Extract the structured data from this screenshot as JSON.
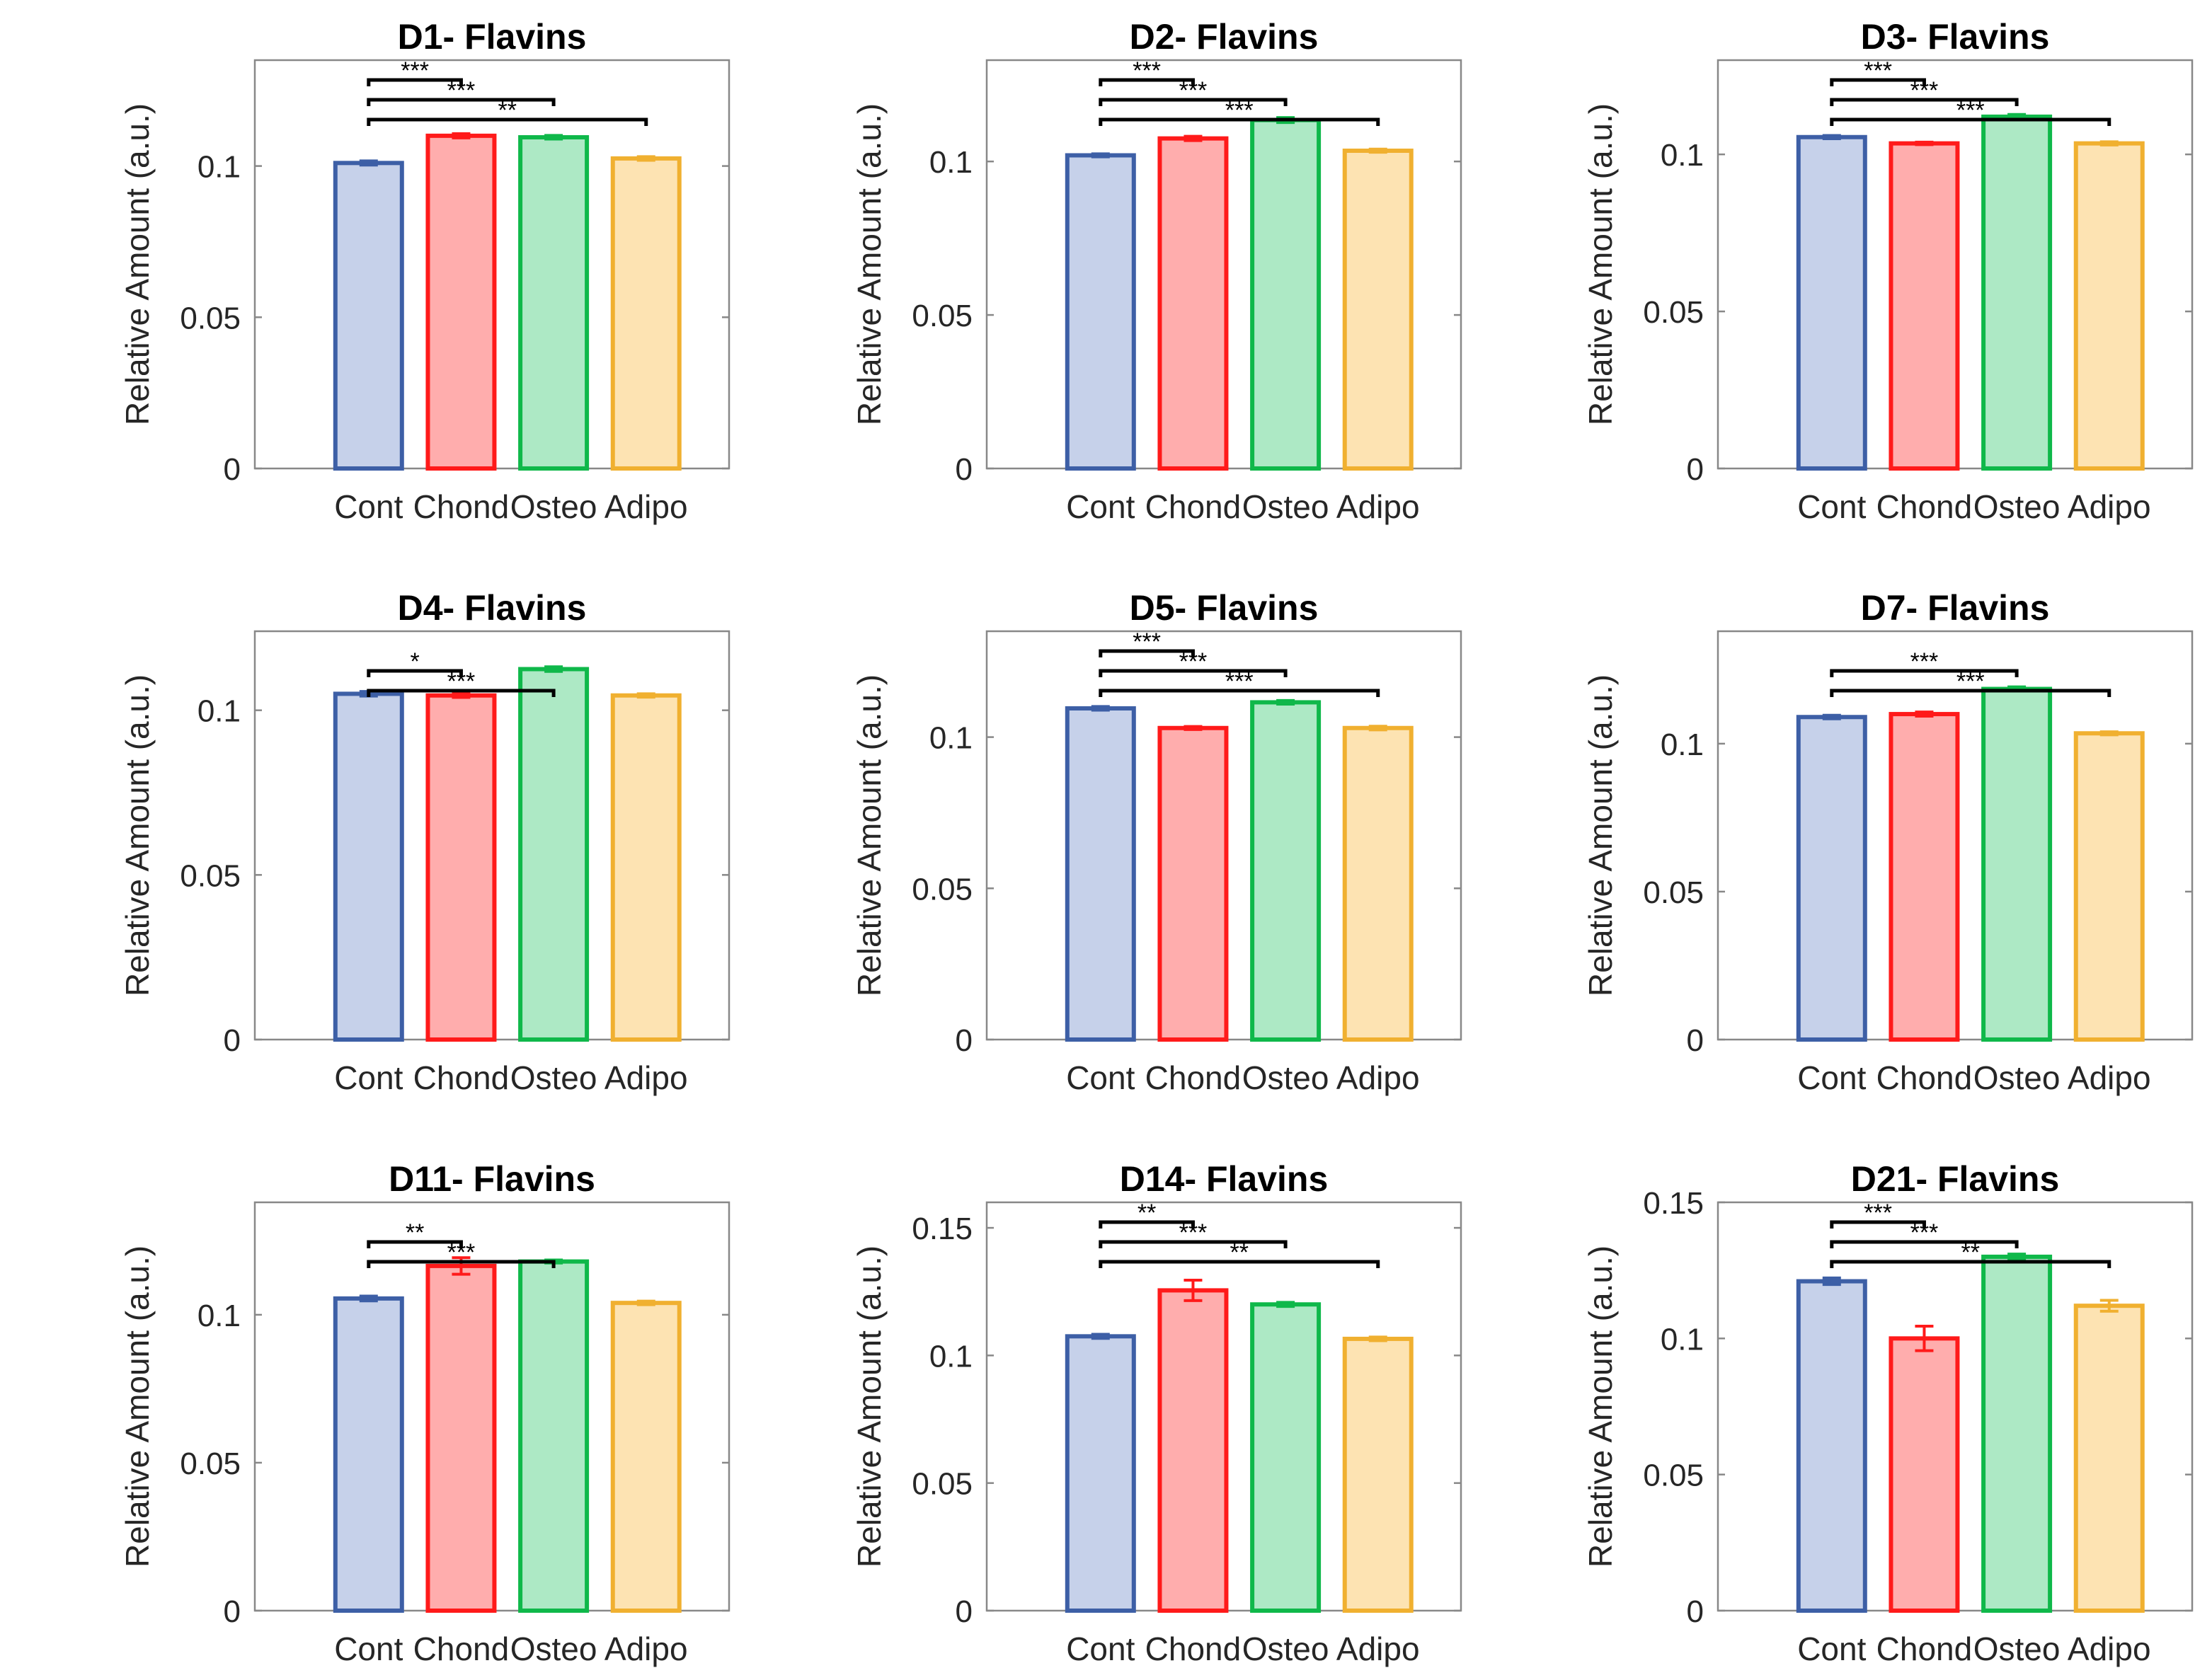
{
  "chart_data": [
    {
      "type": "bar",
      "title": "D1- Flavins",
      "ylabel": "Relative Amount (a.u.)",
      "xlabel": "",
      "categories": [
        "Cont",
        "Chond",
        "Osteo",
        "Adipo"
      ],
      "values": [
        0.101,
        0.11,
        0.1095,
        0.1025
      ],
      "errors": [
        0.0007,
        0.0007,
        0.0006,
        0.0006
      ],
      "ylim": [
        0,
        0.135
      ],
      "yticks": [
        0,
        0.05,
        0.1
      ],
      "ytick_labels": [
        "0",
        "0.05",
        "0.1"
      ],
      "significance": [
        {
          "from": 0,
          "to": 1,
          "label": "***"
        },
        {
          "from": 0,
          "to": 2,
          "label": "***"
        },
        {
          "from": 0,
          "to": 3,
          "label": "**"
        }
      ]
    },
    {
      "type": "bar",
      "title": "D2- Flavins",
      "ylabel": "Relative Amount (a.u.)",
      "xlabel": "",
      "categories": [
        "Cont",
        "Chond",
        "Osteo",
        "Adipo"
      ],
      "values": [
        0.102,
        0.1075,
        0.1135,
        0.1035
      ],
      "errors": [
        0.0005,
        0.0007,
        0.0008,
        0.0005
      ],
      "ylim": [
        0,
        0.133
      ],
      "yticks": [
        0,
        0.05,
        0.1
      ],
      "ytick_labels": [
        "0",
        "0.05",
        "0.1"
      ],
      "significance": [
        {
          "from": 0,
          "to": 1,
          "label": "***"
        },
        {
          "from": 0,
          "to": 2,
          "label": "***"
        },
        {
          "from": 0,
          "to": 3,
          "label": "***"
        }
      ]
    },
    {
      "type": "bar",
      "title": "D3- Flavins",
      "ylabel": "Relative Amount (a.u.)",
      "xlabel": "",
      "categories": [
        "Cont",
        "Chond",
        "Osteo",
        "Adipo"
      ],
      "values": [
        0.1055,
        0.1035,
        0.112,
        0.1035
      ],
      "errors": [
        0.0005,
        0.0004,
        0.0007,
        0.0005
      ],
      "ylim": [
        0,
        0.13
      ],
      "yticks": [
        0,
        0.05,
        0.1
      ],
      "ytick_labels": [
        "0",
        "0.05",
        "0.1"
      ],
      "significance": [
        {
          "from": 0,
          "to": 1,
          "label": "***"
        },
        {
          "from": 0,
          "to": 2,
          "label": "***"
        },
        {
          "from": 0,
          "to": 3,
          "label": "***"
        }
      ]
    },
    {
      "type": "bar",
      "title": "D4- Flavins",
      "ylabel": "Relative Amount (a.u.)",
      "xlabel": "",
      "categories": [
        "Cont",
        "Chond",
        "Osteo",
        "Adipo"
      ],
      "values": [
        0.105,
        0.1045,
        0.1125,
        0.1045
      ],
      "errors": [
        0.0007,
        0.0006,
        0.0007,
        0.0005
      ],
      "ylim": [
        0,
        0.124
      ],
      "yticks": [
        0,
        0.05,
        0.1
      ],
      "ytick_labels": [
        "0",
        "0.05",
        "0.1"
      ],
      "significance": [
        {
          "from": 0,
          "to": 1,
          "label": "*"
        },
        {
          "from": 0,
          "to": 2,
          "label": "***"
        }
      ]
    },
    {
      "type": "bar",
      "title": "D5- Flavins",
      "ylabel": "Relative Amount (a.u.)",
      "xlabel": "",
      "categories": [
        "Cont",
        "Chond",
        "Osteo",
        "Adipo"
      ],
      "values": [
        0.1095,
        0.103,
        0.1115,
        0.103
      ],
      "errors": [
        0.0006,
        0.0005,
        0.0006,
        0.0006
      ],
      "ylim": [
        0,
        0.135
      ],
      "yticks": [
        0,
        0.05,
        0.1
      ],
      "ytick_labels": [
        "0",
        "0.05",
        "0.1"
      ],
      "significance": [
        {
          "from": 0,
          "to": 1,
          "label": "***"
        },
        {
          "from": 0,
          "to": 2,
          "label": "***"
        },
        {
          "from": 0,
          "to": 3,
          "label": "***"
        }
      ]
    },
    {
      "type": "bar",
      "title": "D7- Flavins",
      "ylabel": "Relative Amount (a.u.)",
      "xlabel": "",
      "categories": [
        "Cont",
        "Chond",
        "Osteo",
        "Adipo"
      ],
      "values": [
        0.109,
        0.11,
        0.1185,
        0.1035
      ],
      "errors": [
        0.0006,
        0.0007,
        0.0007,
        0.0005
      ],
      "ylim": [
        0,
        0.138
      ],
      "yticks": [
        0,
        0.05,
        0.1
      ],
      "ytick_labels": [
        "0",
        "0.05",
        "0.1"
      ],
      "significance": [
        {
          "from": 0,
          "to": 2,
          "label": "***"
        },
        {
          "from": 0,
          "to": 3,
          "label": "***"
        }
      ]
    },
    {
      "type": "bar",
      "title": "D11- Flavins",
      "ylabel": "Relative Amount (a.u.)",
      "xlabel": "",
      "categories": [
        "Cont",
        "Chond",
        "Osteo",
        "Adipo"
      ],
      "values": [
        0.1055,
        0.1165,
        0.118,
        0.104
      ],
      "errors": [
        0.0008,
        0.0028,
        0.0005,
        0.0006
      ],
      "ylim": [
        0,
        0.138
      ],
      "yticks": [
        0,
        0.05,
        0.1
      ],
      "ytick_labels": [
        "0",
        "0.05",
        "0.1"
      ],
      "significance": [
        {
          "from": 0,
          "to": 1,
          "label": "**"
        },
        {
          "from": 0,
          "to": 2,
          "label": "***"
        }
      ]
    },
    {
      "type": "bar",
      "title": "D14- Flavins",
      "ylabel": "Relative Amount (a.u.)",
      "xlabel": "",
      "categories": [
        "Cont",
        "Chond",
        "Osteo",
        "Adipo"
      ],
      "values": [
        0.1075,
        0.1255,
        0.12,
        0.1065
      ],
      "errors": [
        0.0008,
        0.004,
        0.0008,
        0.0007
      ],
      "ylim": [
        0,
        0.16
      ],
      "yticks": [
        0,
        0.05,
        0.1,
        0.15
      ],
      "ytick_labels": [
        "0",
        "0.05",
        "0.1",
        "0.15"
      ],
      "significance": [
        {
          "from": 0,
          "to": 1,
          "label": "**"
        },
        {
          "from": 0,
          "to": 2,
          "label": "***"
        },
        {
          "from": 0,
          "to": 3,
          "label": "**"
        }
      ]
    },
    {
      "type": "bar",
      "title": "D21- Flavins",
      "ylabel": "Relative Amount (a.u.)",
      "xlabel": "",
      "categories": [
        "Cont",
        "Chond",
        "Osteo",
        "Adipo"
      ],
      "values": [
        0.121,
        0.1,
        0.13,
        0.112
      ],
      "errors": [
        0.0012,
        0.0045,
        0.001,
        0.002
      ],
      "ylim": [
        0,
        0.15
      ],
      "yticks": [
        0,
        0.05,
        0.1,
        0.15
      ],
      "ytick_labels": [
        "0",
        "0.05",
        "0.1",
        "0.15"
      ],
      "significance": [
        {
          "from": 0,
          "to": 1,
          "label": "***"
        },
        {
          "from": 0,
          "to": 2,
          "label": "***"
        },
        {
          "from": 0,
          "to": 3,
          "label": "**"
        }
      ]
    }
  ],
  "colors": {
    "edges": [
      "#3d5fa6",
      "#ff1a1a",
      "#0fb84a",
      "#f0b030"
    ],
    "fills": [
      "#c6d1ea",
      "#ffadad",
      "#ade9c5",
      "#fde3b2"
    ],
    "axis": "#888888",
    "text": "#262626",
    "brackets": "#000000"
  }
}
